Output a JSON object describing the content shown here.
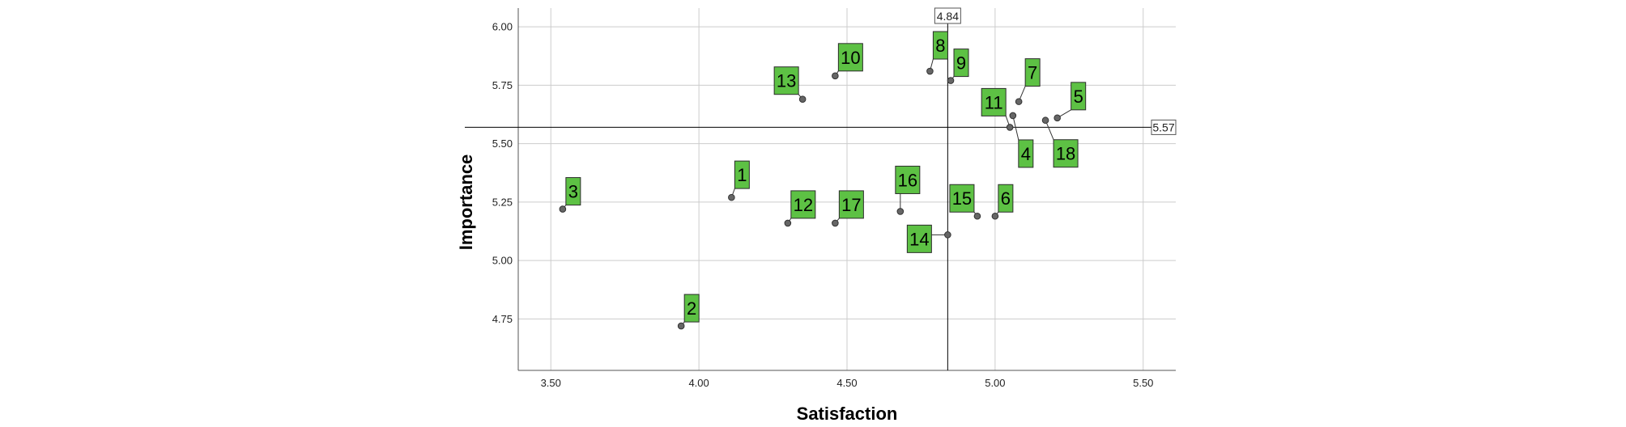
{
  "chart_data": {
    "type": "scatter",
    "xlabel": "Satisfaction",
    "ylabel": "Importance",
    "xlim": [
      3.39,
      5.61
    ],
    "ylim": [
      4.53,
      6.08
    ],
    "xticks": [
      "3.50",
      "4.00",
      "4.50",
      "5.00",
      "5.50"
    ],
    "yticks": [
      "4.75",
      "5.00",
      "5.25",
      "5.50",
      "5.75",
      "6.00"
    ],
    "grid": true,
    "point_color": "#666666",
    "label_color": "#5dc144",
    "reference_lines": {
      "x": 4.84,
      "x_label": "4.84",
      "y": 5.57,
      "y_label": "5.57"
    },
    "points": [
      {
        "label": "1",
        "x": 4.11,
        "y": 5.27
      },
      {
        "label": "2",
        "x": 3.94,
        "y": 4.72
      },
      {
        "label": "3",
        "x": 3.54,
        "y": 5.22
      },
      {
        "label": "4",
        "x": 5.06,
        "y": 5.62
      },
      {
        "label": "5",
        "x": 5.21,
        "y": 5.61
      },
      {
        "label": "6",
        "x": 5.0,
        "y": 5.19
      },
      {
        "label": "7",
        "x": 5.08,
        "y": 5.68
      },
      {
        "label": "8",
        "x": 4.78,
        "y": 5.81
      },
      {
        "label": "9",
        "x": 4.85,
        "y": 5.77
      },
      {
        "label": "10",
        "x": 4.46,
        "y": 5.79
      },
      {
        "label": "11",
        "x": 5.05,
        "y": 5.57
      },
      {
        "label": "12",
        "x": 4.3,
        "y": 5.16
      },
      {
        "label": "13",
        "x": 4.35,
        "y": 5.69
      },
      {
        "label": "14",
        "x": 4.84,
        "y": 5.11
      },
      {
        "label": "15",
        "x": 4.94,
        "y": 5.19
      },
      {
        "label": "16",
        "x": 4.68,
        "y": 5.21
      },
      {
        "label": "17",
        "x": 4.46,
        "y": 5.16
      },
      {
        "label": "18",
        "x": 5.17,
        "y": 5.6
      }
    ]
  }
}
